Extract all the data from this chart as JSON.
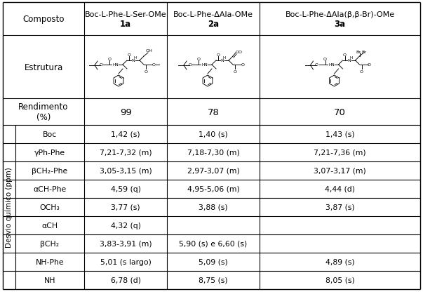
{
  "col_headers": [
    "Composto",
    "Boc-L-Phe-L-Ser-OMe",
    "1a",
    "Boc-L-Phe-ΔAla-OMe",
    "2a",
    "Boc-L-Phe-ΔAla(β,β-Br)-OMe",
    "3a"
  ],
  "row_labels_left": [
    "Estrutura",
    "Rendimento\n(%)",
    "Boc",
    "γPh-Phe",
    "βCH₂-Phe",
    "αCH-Phe",
    "OCH₃",
    "αCH",
    "βCH₂",
    "NH-Phe",
    "NH"
  ],
  "desvio_label": "Desvio químico (ppm)",
  "yields": [
    "99",
    "78",
    "70"
  ],
  "data": [
    [
      "1,42 (s)",
      "1,40 (s)",
      "1,43 (s)"
    ],
    [
      "7,21-7,32 (m)",
      "7,18-7,30 (m)",
      "7,21-7,36 (m)"
    ],
    [
      "3,05-3,15 (m)",
      "2,97-3,07 (m)",
      "3,07-3,17 (m)"
    ],
    [
      "4,59 (q)",
      "4,95-5,06 (m)",
      "4,44 (d)"
    ],
    [
      "3,77 (s)",
      "3,88 (s)",
      "3,87 (s)"
    ],
    [
      "4,32 (q)",
      "",
      ""
    ],
    [
      "3,83-3,91 (m)",
      "5,90 (s) e 6,60 (s)",
      ""
    ],
    [
      "5,01 (s largo)",
      "5,09 (s)",
      "4,89 (s)"
    ],
    [
      "6,78 (d)",
      "8,75 (s)",
      "8,05 (s)"
    ]
  ],
  "bg_color": "#ffffff",
  "line_color": "#000000",
  "text_color": "#000000"
}
